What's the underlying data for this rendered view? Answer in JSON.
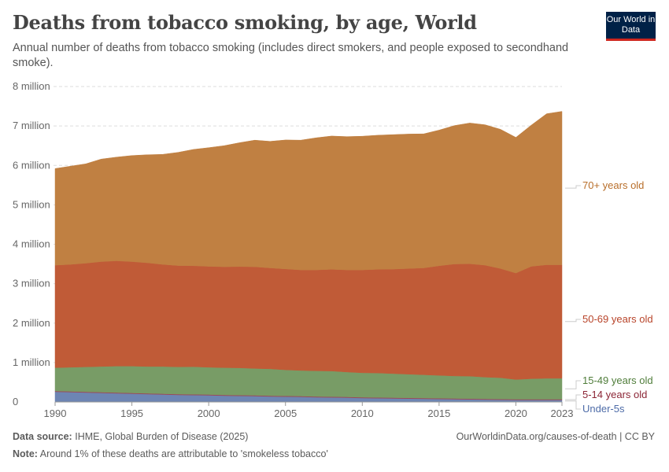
{
  "header": {
    "title": "Deaths from tobacco smoking, by age, World",
    "subtitle": "Annual number of deaths from tobacco smoking (includes direct smokers, and people exposed to secondhand smoke).",
    "logo_text": "Our World in Data"
  },
  "footer": {
    "source_label": "Data source:",
    "source": "IHME, Global Burden of Disease (2025)",
    "url": "OurWorldinData.org/causes-of-death | CC BY",
    "note_label": "Note:",
    "note": "Around 1% of these deaths are attributable to 'smokeless tobacco'"
  },
  "chart_data": {
    "type": "area",
    "stacked": true,
    "x": [
      1990,
      1991,
      1992,
      1993,
      1994,
      1995,
      1996,
      1997,
      1998,
      1999,
      2000,
      2001,
      2002,
      2003,
      2004,
      2005,
      2006,
      2007,
      2008,
      2009,
      2010,
      2011,
      2012,
      2013,
      2014,
      2015,
      2016,
      2017,
      2018,
      2019,
      2020,
      2021,
      2022,
      2023
    ],
    "xticks": [
      "1990",
      "1995",
      "2000",
      "2005",
      "2010",
      "2015",
      "2020",
      "2023"
    ],
    "yticks": [
      "0",
      "1 million",
      "2 million",
      "3 million",
      "4 million",
      "5 million",
      "6 million",
      "7 million",
      "8 million"
    ],
    "ylim": [
      0,
      8000000
    ],
    "grid": true,
    "legend": "right-inline",
    "unit_multiplier": 1000000,
    "series": [
      {
        "name": "Under-5s",
        "color": "#6D85B3",
        "label_color": "#4E6CA8",
        "values": [
          0.26,
          0.25,
          0.24,
          0.23,
          0.22,
          0.21,
          0.2,
          0.19,
          0.18,
          0.175,
          0.17,
          0.16,
          0.155,
          0.15,
          0.14,
          0.135,
          0.13,
          0.12,
          0.115,
          0.11,
          0.1,
          0.095,
          0.09,
          0.085,
          0.08,
          0.075,
          0.07,
          0.065,
          0.06,
          0.055,
          0.05,
          0.05,
          0.05,
          0.05
        ]
      },
      {
        "name": "5-14 years old",
        "color": "#9A4A5A",
        "label_color": "#8B2535",
        "values": [
          0.02,
          0.02,
          0.02,
          0.02,
          0.02,
          0.02,
          0.02,
          0.02,
          0.02,
          0.02,
          0.02,
          0.02,
          0.02,
          0.02,
          0.02,
          0.02,
          0.02,
          0.02,
          0.02,
          0.02,
          0.02,
          0.02,
          0.02,
          0.02,
          0.02,
          0.02,
          0.02,
          0.02,
          0.02,
          0.02,
          0.02,
          0.02,
          0.02,
          0.02
        ]
      },
      {
        "name": "15-49 years old",
        "color": "#789C66",
        "label_color": "#4F7D3A",
        "values": [
          0.59,
          0.61,
          0.63,
          0.65,
          0.67,
          0.68,
          0.68,
          0.69,
          0.69,
          0.7,
          0.69,
          0.69,
          0.69,
          0.68,
          0.68,
          0.66,
          0.65,
          0.65,
          0.65,
          0.63,
          0.62,
          0.62,
          0.61,
          0.6,
          0.59,
          0.58,
          0.57,
          0.57,
          0.55,
          0.54,
          0.5,
          0.52,
          0.53,
          0.53
        ]
      },
      {
        "name": "50-69 years old",
        "color": "#C05B37",
        "label_color": "#B8442A",
        "values": [
          2.6,
          2.61,
          2.63,
          2.66,
          2.67,
          2.65,
          2.63,
          2.59,
          2.57,
          2.56,
          2.56,
          2.56,
          2.57,
          2.58,
          2.56,
          2.56,
          2.55,
          2.56,
          2.58,
          2.59,
          2.61,
          2.63,
          2.65,
          2.68,
          2.71,
          2.78,
          2.84,
          2.85,
          2.84,
          2.77,
          2.7,
          2.85,
          2.88,
          2.88
        ]
      },
      {
        "name": "70+ years old",
        "color": "#C08042",
        "label_color": "#B86E2A",
        "values": [
          2.45,
          2.49,
          2.52,
          2.6,
          2.63,
          2.69,
          2.74,
          2.79,
          2.87,
          2.95,
          3.01,
          3.07,
          3.14,
          3.21,
          3.21,
          3.27,
          3.29,
          3.35,
          3.38,
          3.38,
          3.39,
          3.4,
          3.41,
          3.41,
          3.4,
          3.44,
          3.51,
          3.57,
          3.56,
          3.53,
          3.44,
          3.58,
          3.83,
          3.89
        ]
      }
    ]
  }
}
